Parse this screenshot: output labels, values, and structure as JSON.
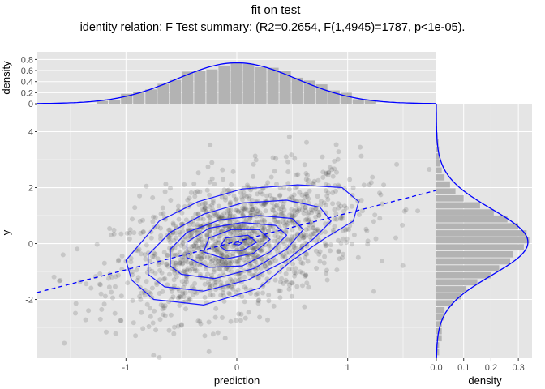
{
  "title": "fit on test",
  "subtitle": "identity relation: F Test summary: (R2=0.2654, F(1,4945)=1787, p<1e-05).",
  "colors": {
    "panel": "#e5e5e5",
    "grid": "#ffffff",
    "points": "#333333",
    "contour": "#1a1aff",
    "fit_line": "#0000ff",
    "bars": "#b3b3b3"
  },
  "chart_data": [
    {
      "type": "scatter",
      "xlabel": "prediction",
      "ylabel": "y",
      "xlim": [
        -1.8,
        1.8
      ],
      "ylim": [
        -4.1,
        5.0
      ],
      "x_ticks": [
        -1,
        0,
        1
      ],
      "x_tick_labels": [
        "-1",
        "0",
        "1"
      ],
      "y_ticks": [
        -2,
        0,
        2,
        4
      ],
      "y_tick_labels": [
        "-2",
        "0",
        "2",
        "4"
      ],
      "grid": true,
      "n_points": 4947,
      "fit_line": {
        "style": "dashed",
        "x": [
          -1.8,
          1.8
        ],
        "y": [
          -1.75,
          1.9
        ]
      },
      "contour_levels": [
        [
          [
            -0.95,
            -1.3
          ],
          [
            -1.0,
            -0.6
          ],
          [
            -0.85,
            0.1
          ],
          [
            -0.7,
            0.8
          ],
          [
            -0.35,
            1.5
          ],
          [
            0.05,
            1.95
          ],
          [
            0.55,
            2.1
          ],
          [
            0.95,
            2.0
          ],
          [
            1.1,
            1.5
          ],
          [
            1.05,
            0.8
          ],
          [
            0.8,
            0.2
          ],
          [
            0.5,
            -0.6
          ],
          [
            0.2,
            -1.6
          ],
          [
            -0.3,
            -2.2
          ],
          [
            -0.75,
            -2.0
          ]
        ],
        [
          [
            -0.8,
            -1.1
          ],
          [
            -0.8,
            -0.4
          ],
          [
            -0.6,
            0.4
          ],
          [
            -0.3,
            1.05
          ],
          [
            0.05,
            1.45
          ],
          [
            0.45,
            1.55
          ],
          [
            0.75,
            1.3
          ],
          [
            0.85,
            0.8
          ],
          [
            0.7,
            0.2
          ],
          [
            0.45,
            -0.6
          ],
          [
            0.1,
            -1.3
          ],
          [
            -0.3,
            -1.7
          ],
          [
            -0.65,
            -1.55
          ]
        ],
        [
          [
            -0.6,
            -0.8
          ],
          [
            -0.6,
            -0.2
          ],
          [
            -0.45,
            0.4
          ],
          [
            -0.15,
            0.85
          ],
          [
            0.2,
            1.0
          ],
          [
            0.5,
            0.9
          ],
          [
            0.6,
            0.5
          ],
          [
            0.45,
            -0.2
          ],
          [
            0.15,
            -0.9
          ],
          [
            -0.2,
            -1.25
          ],
          [
            -0.5,
            -1.1
          ]
        ],
        [
          [
            -0.45,
            -0.5
          ],
          [
            -0.45,
            0.05
          ],
          [
            -0.25,
            0.55
          ],
          [
            0.05,
            0.75
          ],
          [
            0.35,
            0.65
          ],
          [
            0.45,
            0.3
          ],
          [
            0.3,
            -0.3
          ],
          [
            0.05,
            -0.8
          ],
          [
            -0.25,
            -0.85
          ]
        ],
        [
          [
            -0.3,
            -0.3
          ],
          [
            -0.25,
            0.2
          ],
          [
            -0.05,
            0.5
          ],
          [
            0.2,
            0.5
          ],
          [
            0.3,
            0.15
          ],
          [
            0.15,
            -0.35
          ],
          [
            -0.1,
            -0.55
          ]
        ],
        [
          [
            -0.15,
            -0.1
          ],
          [
            -0.1,
            0.2
          ],
          [
            0.1,
            0.3
          ],
          [
            0.18,
            0.05
          ],
          [
            0.05,
            -0.25
          ],
          [
            -0.1,
            -0.25
          ]
        ],
        [
          [
            -0.03,
            -0.02
          ],
          [
            0.0,
            0.06
          ],
          [
            0.05,
            0.02
          ],
          [
            0.02,
            -0.05
          ]
        ]
      ]
    },
    {
      "type": "bar",
      "ylabel": "density",
      "ylim": [
        0,
        0.85
      ],
      "y_ticks": [
        0,
        0.2,
        0.4,
        0.6,
        0.8
      ],
      "y_tick_labels": [
        "0",
        "0.2",
        "0.4",
        "0.6",
        "0.8"
      ],
      "bin_width": 0.11,
      "x": [
        -1.65,
        -1.54,
        -1.43,
        -1.32,
        -1.21,
        -1.1,
        -0.99,
        -0.88,
        -0.77,
        -0.66,
        -0.55,
        -0.44,
        -0.33,
        -0.22,
        -0.11,
        0.0,
        0.11,
        0.22,
        0.33,
        0.44,
        0.55,
        0.66,
        0.77,
        0.88,
        0.99,
        1.1,
        1.21,
        1.32,
        1.43,
        1.54,
        1.65
      ],
      "values": [
        0.0,
        0.0,
        0.0,
        0.0,
        0.05,
        0.07,
        0.18,
        0.22,
        0.26,
        0.36,
        0.43,
        0.58,
        0.6,
        0.62,
        0.69,
        0.74,
        0.72,
        0.66,
        0.65,
        0.6,
        0.47,
        0.42,
        0.35,
        0.24,
        0.2,
        0.08,
        0.06,
        0.0,
        0.0,
        0.0,
        0.0
      ],
      "density_curve": true
    },
    {
      "type": "bar",
      "orientation": "horizontal",
      "xlabel": "density",
      "xlim": [
        0,
        0.35
      ],
      "x_ticks": [
        0,
        0.1,
        0.2,
        0.3
      ],
      "x_tick_labels": [
        "0.0",
        "0.1",
        "0.2",
        "0.3"
      ],
      "bin_width": 0.25,
      "y": [
        -3.9,
        -3.65,
        -3.4,
        -3.15,
        -2.9,
        -2.65,
        -2.4,
        -2.15,
        -1.9,
        -1.65,
        -1.4,
        -1.15,
        -0.9,
        -0.65,
        -0.4,
        -0.15,
        0.1,
        0.35,
        0.6,
        0.85,
        1.1,
        1.35,
        1.6,
        1.85,
        2.1,
        2.35,
        2.6,
        2.85,
        3.1,
        3.35,
        3.6,
        3.85,
        4.1,
        4.35
      ],
      "values": [
        0.01,
        0.01,
        0.02,
        0.02,
        0.02,
        0.03,
        0.03,
        0.06,
        0.09,
        0.11,
        0.15,
        0.2,
        0.23,
        0.27,
        0.28,
        0.32,
        0.34,
        0.33,
        0.3,
        0.26,
        0.21,
        0.16,
        0.1,
        0.07,
        0.05,
        0.03,
        0.02,
        0.015,
        0.01,
        0.01,
        0.008,
        0.005,
        0.003,
        0.002
      ],
      "density_curve": true
    }
  ]
}
